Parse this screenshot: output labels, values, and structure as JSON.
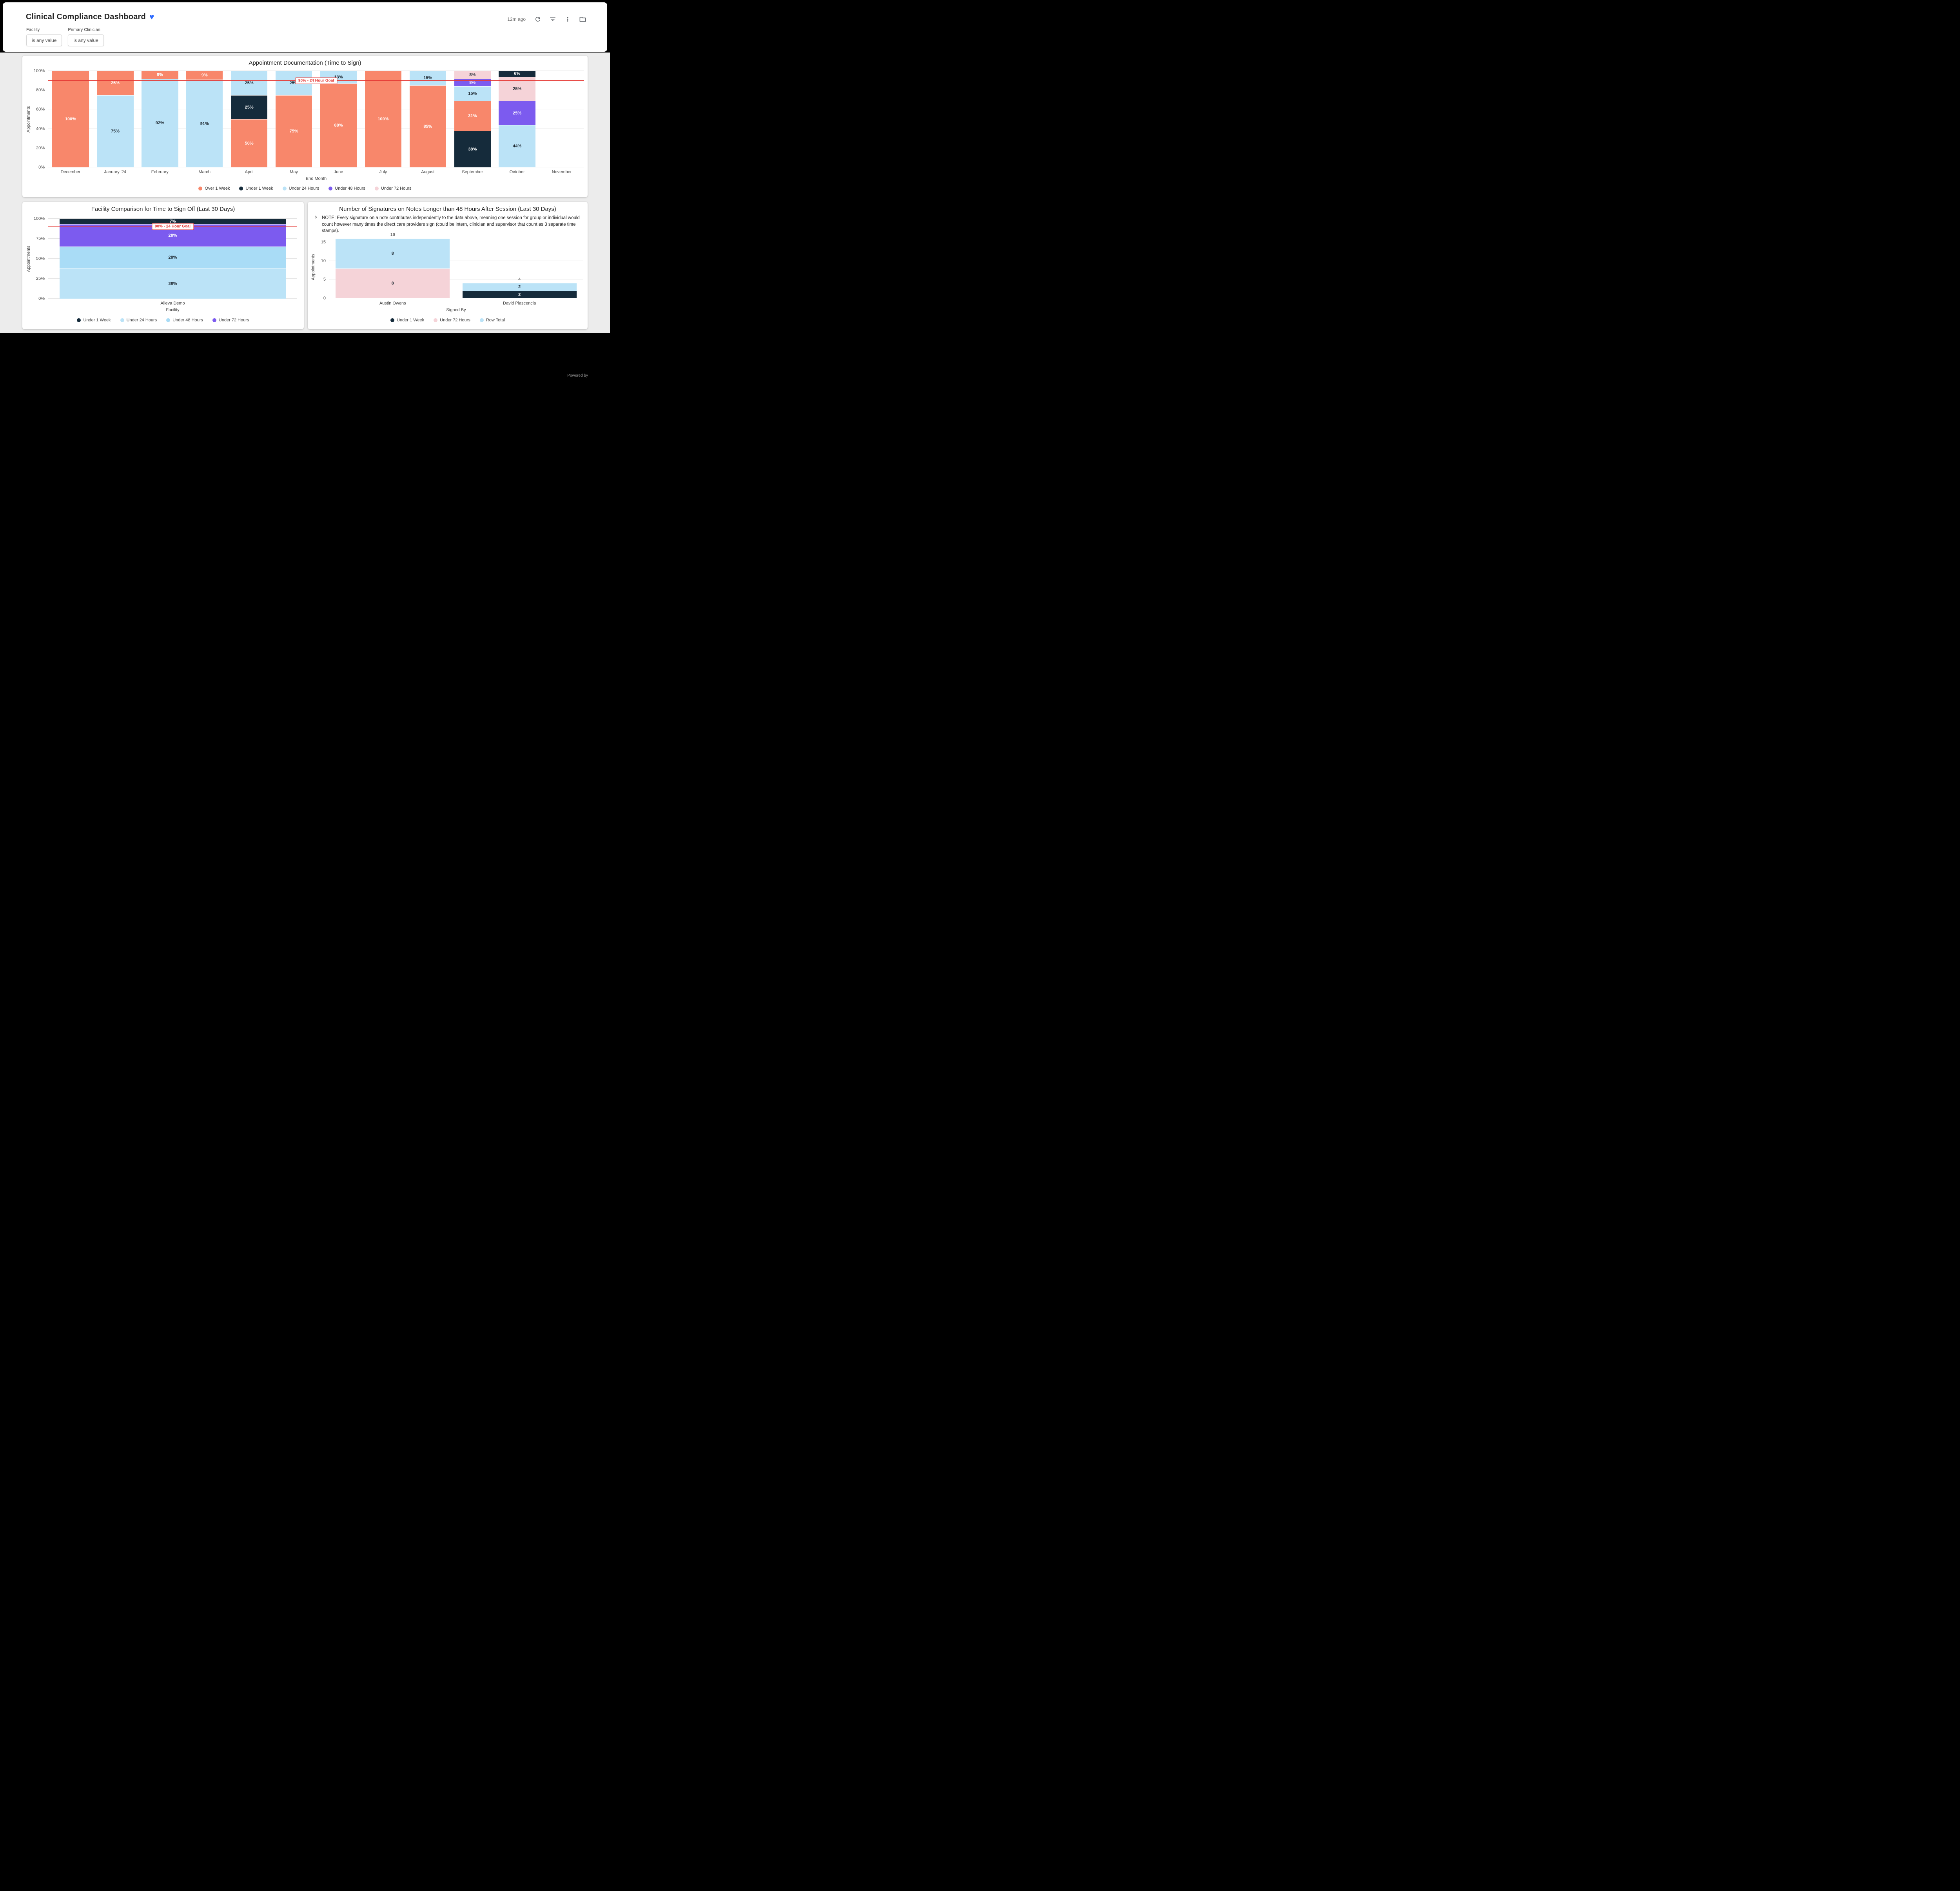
{
  "header": {
    "title": "Clinical Compliance Dashboard",
    "heart_icon": "♥",
    "updated": "12m ago",
    "filters": [
      {
        "label": "Facility",
        "value": "is any value"
      },
      {
        "label": "Primary Clinician",
        "value": "is any value"
      }
    ]
  },
  "footer": {
    "powered_by": "Powered by"
  },
  "chart_data": [
    {
      "type": "bar",
      "stacked": true,
      "title": "Appointment Documentation (Time to Sign)",
      "xlabel": "End Month",
      "ylabel": "Appointments",
      "ylim": [
        0,
        100
      ],
      "grid": true,
      "legend_position": "bottom",
      "y_ticks": [
        {
          "value": 0,
          "label": "0%"
        },
        {
          "value": 20,
          "label": "20%"
        },
        {
          "value": 40,
          "label": "40%"
        },
        {
          "value": 60,
          "label": "60%"
        },
        {
          "value": 80,
          "label": "80%"
        },
        {
          "value": 100,
          "label": "100%"
        }
      ],
      "goal": {
        "value": 90,
        "label": "90% - 24 Hour Goal",
        "color": "#E53935"
      },
      "legend": [
        {
          "name": "Over 1 Week",
          "color": "#F8876B",
          "text": "#FFFFFF"
        },
        {
          "name": "Under 1 Week",
          "color": "#152B3B",
          "text": "#FFFFFF"
        },
        {
          "name": "Under 24 Hours",
          "color": "#BBE3F7",
          "text": "#1F2A33"
        },
        {
          "name": "Under 48 Hours",
          "color": "#7C5BEF",
          "text": "#FFFFFF"
        },
        {
          "name": "Under 72 Hours",
          "color": "#F5D3D8",
          "text": "#1F2A33"
        }
      ],
      "bars": [
        {
          "category": "December",
          "segments": [
            {
              "series": "Over 1 Week",
              "value": 100,
              "label": "100%"
            }
          ]
        },
        {
          "category": "January '24",
          "segments": [
            {
              "series": "Under 24 Hours",
              "value": 75,
              "label": "75%"
            },
            {
              "series": "Over 1 Week",
              "value": 25,
              "label": "25%"
            }
          ]
        },
        {
          "category": "February",
          "segments": [
            {
              "series": "Under 24 Hours",
              "value": 92,
              "label": "92%"
            },
            {
              "series": "Over 1 Week",
              "value": 8,
              "label": "8%"
            }
          ]
        },
        {
          "category": "March",
          "segments": [
            {
              "series": "Under 24 Hours",
              "value": 91,
              "label": "91%"
            },
            {
              "series": "Over 1 Week",
              "value": 9,
              "label": "9%"
            }
          ]
        },
        {
          "category": "April",
          "segments": [
            {
              "series": "Over 1 Week",
              "value": 50,
              "label": "50%"
            },
            {
              "series": "Under 1 Week",
              "value": 25,
              "label": "25%"
            },
            {
              "series": "Under 24 Hours",
              "value": 25,
              "label": "25%"
            }
          ]
        },
        {
          "category": "May",
          "segments": [
            {
              "series": "Over 1 Week",
              "value": 75,
              "label": "75%"
            },
            {
              "series": "Under 24 Hours",
              "value": 25,
              "label": "25%"
            }
          ]
        },
        {
          "category": "June",
          "segments": [
            {
              "series": "Over 1 Week",
              "value": 88,
              "label": "88%"
            },
            {
              "series": "Under 24 Hours",
              "value": 13,
              "label": "13%"
            }
          ]
        },
        {
          "category": "July",
          "segments": [
            {
              "series": "Over 1 Week",
              "value": 100,
              "label": "100%"
            }
          ]
        },
        {
          "category": "August",
          "segments": [
            {
              "series": "Over 1 Week",
              "value": 85,
              "label": "85%"
            },
            {
              "series": "Under 24 Hours",
              "value": 15,
              "label": "15%"
            }
          ]
        },
        {
          "category": "September",
          "segments": [
            {
              "series": "Under 1 Week",
              "value": 38,
              "label": "38%"
            },
            {
              "series": "Over 1 Week",
              "value": 31,
              "label": "31%"
            },
            {
              "series": "Under 24 Hours",
              "value": 15,
              "label": "15%"
            },
            {
              "series": "Under 48 Hours",
              "value": 8,
              "label": "8%"
            },
            {
              "series": "Under 72 Hours",
              "value": 8,
              "label": "8%"
            }
          ]
        },
        {
          "category": "October",
          "segments": [
            {
              "series": "Under 24 Hours",
              "value": 44,
              "label": "44%"
            },
            {
              "series": "Under 48 Hours",
              "value": 25,
              "label": "25%"
            },
            {
              "series": "Under 72 Hours",
              "value": 25,
              "label": "25%"
            },
            {
              "series": "Under 1 Week",
              "value": 6,
              "label": "6%"
            }
          ]
        },
        {
          "category": "November",
          "segments": []
        }
      ]
    },
    {
      "type": "bar",
      "stacked": true,
      "title": "Facility Comparison for Time to Sign Off (Last 30 Days)",
      "xlabel": "Facility",
      "ylabel": "Appointments",
      "ylim": [
        0,
        100
      ],
      "grid": true,
      "legend_position": "bottom",
      "y_ticks": [
        {
          "value": 0,
          "label": "0%"
        },
        {
          "value": 25,
          "label": "25%"
        },
        {
          "value": 50,
          "label": "50%"
        },
        {
          "value": 75,
          "label": "75%"
        },
        {
          "value": 100,
          "label": "100%"
        }
      ],
      "goal": {
        "value": 90,
        "label": "90% - 24 Hour Goal",
        "color": "#E53935"
      },
      "legend": [
        {
          "name": "Under 1 Week",
          "color": "#152B3B",
          "text": "#FFFFFF"
        },
        {
          "name": "Under 24 Hours",
          "color": "#BBE3F7",
          "text": "#1F2A33"
        },
        {
          "name": "Under 48 Hours",
          "color": "#A9DCF6",
          "text": "#1F2A33"
        },
        {
          "name": "Under 72 Hours",
          "color": "#7C5BEF",
          "text": "#FFFFFF"
        }
      ],
      "bars": [
        {
          "category": "Alleva Demo",
          "segments": [
            {
              "series": "Under 24 Hours",
              "value": 38,
              "label": "38%"
            },
            {
              "series": "Under 48 Hours",
              "value": 28,
              "label": "28%"
            },
            {
              "series": "Under 72 Hours",
              "value": 28,
              "label": "28%"
            },
            {
              "series": "Under 1 Week",
              "value": 7,
              "label": "7%"
            }
          ]
        }
      ]
    },
    {
      "type": "bar",
      "stacked": true,
      "title": "Number of Signatures on Notes Longer than 48 Hours After Session (Last 30 Days)",
      "note": "NOTE: Every signature on a note contributes independently to the data above, meaning one session for group or individual would count however many times the direct care providers sign (could be intern, clinician and supervisor that count as 3 separate time stamps).",
      "xlabel": "Signed By",
      "ylabel": "Appointments",
      "ylim": [
        0,
        16.8
      ],
      "grid": true,
      "legend_position": "bottom",
      "y_ticks": [
        {
          "value": 0,
          "label": "0"
        },
        {
          "value": 5,
          "label": "5"
        },
        {
          "value": 10,
          "label": "10"
        },
        {
          "value": 15,
          "label": "15"
        }
      ],
      "legend": [
        {
          "name": "Under 1 Week",
          "color": "#152B3B",
          "text": "#FFFFFF"
        },
        {
          "name": "Under 72 Hours",
          "color": "#F5D3D8",
          "text": "#1F2A33"
        },
        {
          "name": "Row Total",
          "color": "#BBE3F7",
          "text": "#1F2A33"
        }
      ],
      "bars": [
        {
          "category": "Austin Owens",
          "total_label": "16",
          "segments": [
            {
              "series": "Under 72 Hours",
              "value": 8,
              "label": "8"
            },
            {
              "series": "Row Total",
              "value": 8,
              "label": "8"
            }
          ]
        },
        {
          "category": "David Plascencia",
          "total_label": "4",
          "segments": [
            {
              "series": "Under 1 Week",
              "value": 2,
              "label": "2"
            },
            {
              "series": "Row Total",
              "value": 2,
              "label": "2"
            }
          ]
        }
      ]
    }
  ]
}
